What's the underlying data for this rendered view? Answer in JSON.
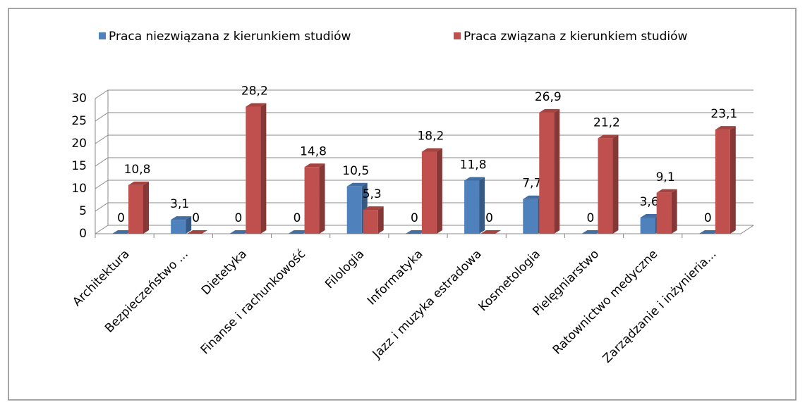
{
  "chart_data": {
    "type": "bar3d",
    "categories": [
      "Architektura",
      "Bezpieczeństwo ...",
      "Dietetyka",
      "Finanse i rachunkowość",
      "Filologia",
      "Informatyka",
      "Jazz i muzyka estradowa",
      "Kosmetologia",
      "Pielęgniarstwo",
      "Ratownictwo medyczne",
      "Zarządzanie i inżynieria..."
    ],
    "series": [
      {
        "name": "Praca niezwiązana z kierunkiem studiów",
        "color": "#4f81bd",
        "values": [
          0,
          3.1,
          0,
          0,
          10.5,
          0,
          11.8,
          7.7,
          0,
          3.6,
          0
        ],
        "value_labels": [
          "0",
          "3,1",
          "0",
          "0",
          "10,5",
          "0",
          "11,8",
          "7,7",
          "0",
          "3,6",
          "0"
        ]
      },
      {
        "name": "Praca związana z kierunkiem studiów",
        "color": "#c0504d",
        "values": [
          10.8,
          0,
          28.2,
          14.8,
          5.3,
          18.2,
          0,
          26.9,
          21.2,
          9.1,
          23.1
        ],
        "value_labels": [
          "10,8",
          "0",
          "28,2",
          "14,8",
          "5,3",
          "18,2",
          "0",
          "26,9",
          "21,2",
          "9,1",
          "23,1"
        ]
      }
    ],
    "ylim": [
      0,
      30
    ],
    "yticks": [
      0,
      5,
      10,
      15,
      20,
      25,
      30
    ],
    "grid": true,
    "legend": "top"
  }
}
